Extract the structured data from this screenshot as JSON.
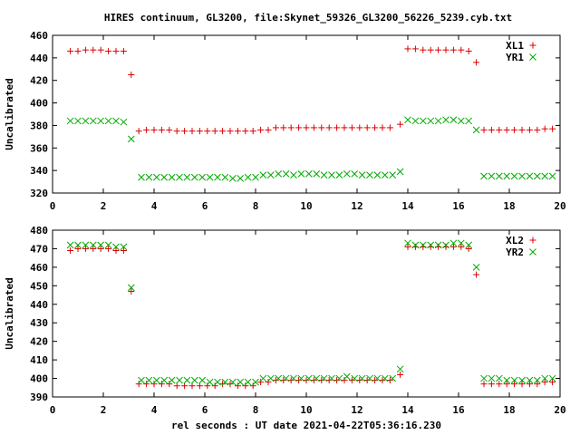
{
  "title": "HIRES continuum, GL3200, file:Skynet_59326_GL3200_56226_5239.cyb.txt",
  "xlabel": "rel seconds : UT date 2021-04-22T05:36:16.230",
  "chart_data": [
    {
      "type": "scatter",
      "ylabel": "Uncalibrated",
      "xlim": [
        0,
        20
      ],
      "ylim": [
        320,
        460
      ],
      "xticks": [
        0,
        2,
        4,
        6,
        8,
        10,
        12,
        14,
        16,
        18,
        20
      ],
      "yticks": [
        320,
        340,
        360,
        380,
        400,
        420,
        440,
        460
      ],
      "legend_position": "top-right",
      "series": [
        {
          "name": "XL1",
          "marker": "plus",
          "color": "#dd0000",
          "x": [
            0.7,
            1.0,
            1.3,
            1.6,
            1.9,
            2.2,
            2.5,
            2.8,
            3.1,
            3.4,
            3.7,
            4.0,
            4.3,
            4.6,
            4.9,
            5.2,
            5.5,
            5.8,
            6.1,
            6.4,
            6.7,
            7.0,
            7.3,
            7.6,
            7.9,
            8.2,
            8.5,
            8.8,
            9.1,
            9.4,
            9.7,
            10.0,
            10.3,
            10.6,
            10.9,
            11.2,
            11.5,
            11.8,
            12.1,
            12.4,
            12.7,
            13.0,
            13.3,
            13.7,
            14.0,
            14.3,
            14.6,
            14.9,
            15.2,
            15.5,
            15.8,
            16.1,
            16.4,
            16.7,
            17.0,
            17.3,
            17.6,
            17.9,
            18.2,
            18.5,
            18.8,
            19.1,
            19.4,
            19.7
          ],
          "y": [
            446,
            446,
            447,
            447,
            447,
            446,
            446,
            446,
            425,
            375,
            376,
            376,
            376,
            376,
            375,
            375,
            375,
            375,
            375,
            375,
            375,
            375,
            375,
            375,
            375,
            376,
            376,
            378,
            378,
            378,
            378,
            378,
            378,
            378,
            378,
            378,
            378,
            378,
            378,
            378,
            378,
            378,
            378,
            381,
            448,
            448,
            447,
            447,
            447,
            447,
            447,
            447,
            446,
            436,
            376,
            376,
            376,
            376,
            376,
            376,
            376,
            376,
            377,
            377
          ]
        },
        {
          "name": "YR1",
          "marker": "cross",
          "color": "#00aa00",
          "x": [
            0.7,
            1.0,
            1.3,
            1.6,
            1.9,
            2.2,
            2.5,
            2.8,
            3.1,
            3.5,
            3.8,
            4.1,
            4.4,
            4.7,
            5.0,
            5.3,
            5.6,
            5.9,
            6.2,
            6.5,
            6.8,
            7.1,
            7.4,
            7.7,
            8.0,
            8.3,
            8.6,
            8.9,
            9.2,
            9.5,
            9.8,
            10.1,
            10.4,
            10.7,
            11.0,
            11.3,
            11.6,
            11.9,
            12.2,
            12.5,
            12.8,
            13.1,
            13.4,
            13.7,
            14.0,
            14.3,
            14.6,
            14.9,
            15.2,
            15.5,
            15.8,
            16.1,
            16.4,
            16.7,
            17.0,
            17.3,
            17.6,
            17.9,
            18.2,
            18.5,
            18.8,
            19.1,
            19.4,
            19.7
          ],
          "y": [
            384,
            384,
            384,
            384,
            384,
            384,
            384,
            383,
            368,
            334,
            334,
            334,
            334,
            334,
            334,
            334,
            334,
            334,
            334,
            334,
            334,
            333,
            333,
            334,
            334,
            336,
            336,
            337,
            337,
            336,
            337,
            337,
            337,
            336,
            336,
            336,
            337,
            337,
            336,
            336,
            336,
            336,
            336,
            339,
            385,
            384,
            384,
            384,
            384,
            385,
            385,
            384,
            384,
            376,
            335,
            335,
            335,
            335,
            335,
            335,
            335,
            335,
            335,
            335
          ]
        }
      ]
    },
    {
      "type": "scatter",
      "ylabel": "Uncalibrated",
      "xlim": [
        0,
        20
      ],
      "ylim": [
        390,
        480
      ],
      "xticks": [
        0,
        2,
        4,
        6,
        8,
        10,
        12,
        14,
        16,
        18,
        20
      ],
      "yticks": [
        390,
        400,
        410,
        420,
        430,
        440,
        450,
        460,
        470,
        480
      ],
      "legend_position": "top-right",
      "series": [
        {
          "name": "XL2",
          "marker": "plus",
          "color": "#dd0000",
          "x": [
            0.7,
            1.0,
            1.3,
            1.6,
            1.9,
            2.2,
            2.5,
            2.8,
            3.1,
            3.4,
            3.7,
            4.0,
            4.3,
            4.6,
            4.9,
            5.2,
            5.5,
            5.8,
            6.1,
            6.4,
            6.7,
            7.0,
            7.3,
            7.6,
            7.9,
            8.2,
            8.5,
            8.8,
            9.1,
            9.4,
            9.7,
            10.0,
            10.3,
            10.6,
            10.9,
            11.2,
            11.5,
            11.8,
            12.1,
            12.4,
            12.7,
            13.0,
            13.3,
            13.7,
            14.0,
            14.3,
            14.6,
            14.9,
            15.2,
            15.5,
            15.8,
            16.1,
            16.4,
            16.7,
            17.0,
            17.3,
            17.6,
            17.9,
            18.2,
            18.5,
            18.8,
            19.1,
            19.4,
            19.7
          ],
          "y": [
            469,
            470,
            470,
            470,
            470,
            470,
            469,
            469,
            447,
            397,
            397,
            397,
            397,
            397,
            396,
            396,
            396,
            396,
            396,
            396,
            397,
            397,
            396,
            396,
            396,
            398,
            398,
            399,
            399,
            399,
            399,
            399,
            399,
            399,
            399,
            399,
            399,
            399,
            399,
            399,
            399,
            399,
            399,
            402,
            471,
            471,
            471,
            471,
            471,
            471,
            471,
            471,
            470,
            456,
            397,
            397,
            397,
            397,
            397,
            397,
            397,
            397,
            398,
            398
          ]
        },
        {
          "name": "YR2",
          "marker": "cross",
          "color": "#00aa00",
          "x": [
            0.7,
            1.0,
            1.3,
            1.6,
            1.9,
            2.2,
            2.5,
            2.8,
            3.1,
            3.5,
            3.8,
            4.1,
            4.4,
            4.7,
            5.0,
            5.3,
            5.6,
            5.9,
            6.2,
            6.5,
            6.8,
            7.1,
            7.4,
            7.7,
            8.0,
            8.3,
            8.6,
            8.9,
            9.2,
            9.5,
            9.8,
            10.1,
            10.4,
            10.7,
            11.0,
            11.3,
            11.6,
            11.9,
            12.2,
            12.5,
            12.8,
            13.1,
            13.4,
            13.7,
            14.0,
            14.3,
            14.6,
            14.9,
            15.2,
            15.5,
            15.8,
            16.1,
            16.4,
            16.7,
            17.0,
            17.3,
            17.6,
            17.9,
            18.2,
            18.5,
            18.8,
            19.1,
            19.4,
            19.7
          ],
          "y": [
            472,
            472,
            472,
            472,
            472,
            472,
            471,
            471,
            449,
            399,
            399,
            399,
            399,
            399,
            399,
            399,
            399,
            399,
            398,
            398,
            398,
            398,
            398,
            398,
            398,
            400,
            400,
            400,
            400,
            400,
            400,
            400,
            400,
            400,
            400,
            400,
            401,
            400,
            400,
            400,
            400,
            400,
            400,
            405,
            473,
            472,
            472,
            472,
            472,
            472,
            473,
            473,
            472,
            460,
            400,
            400,
            400,
            399,
            399,
            399,
            399,
            399,
            400,
            400
          ]
        }
      ]
    }
  ]
}
